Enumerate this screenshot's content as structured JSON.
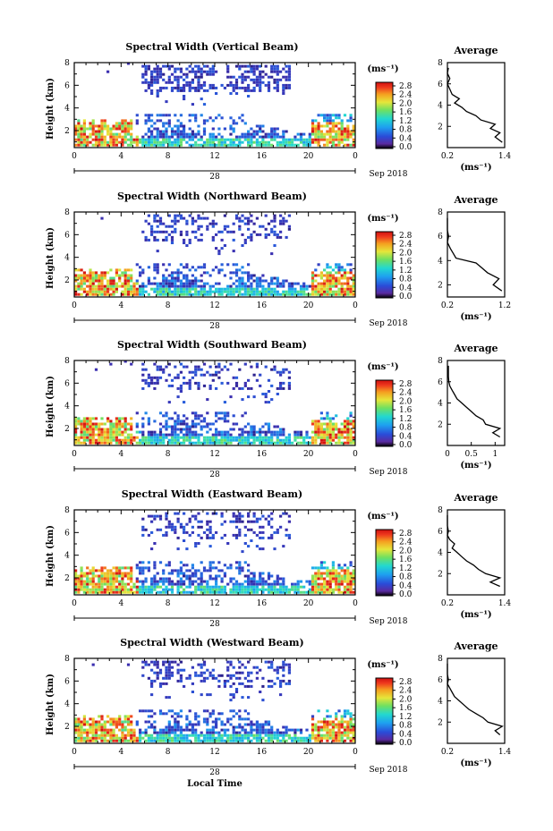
{
  "page": {
    "x_axis_label": "Local Time",
    "date_label": "Sep 2018",
    "day_label": "28",
    "units_label": "(ms⁻¹)",
    "avg_title": "Average",
    "avg_units": "(ms⁻¹)"
  },
  "chart_data": [
    {
      "type": "heatmap",
      "title": "Spectral Width (Vertical Beam)",
      "ylabel": "Height (km)",
      "xlabel": "",
      "xlim": [
        0,
        24
      ],
      "ylim": [
        0.5,
        8
      ],
      "x_ticks": [
        "0",
        "4",
        "8",
        "12",
        "16",
        "20",
        "0"
      ],
      "y_ticks": [
        "2",
        "4",
        "6",
        "8"
      ],
      "colorbar": {
        "ticks": [
          "0.0",
          "0.4",
          "0.8",
          "1.2",
          "1.6",
          "2.0",
          "2.4",
          "2.8"
        ],
        "range": [
          0,
          3.0
        ]
      },
      "average_profile": {
        "x_ticks": [
          "0.2",
          "1.4"
        ],
        "xlim": [
          0.2,
          1.4
        ],
        "ylim": [
          0,
          8
        ],
        "y_ticks": [
          "2",
          "4",
          "6",
          "8"
        ],
        "points": [
          [
            1.35,
            0.5
          ],
          [
            1.2,
            1.0
          ],
          [
            1.3,
            1.4
          ],
          [
            1.1,
            1.8
          ],
          [
            1.2,
            2.2
          ],
          [
            0.9,
            2.6
          ],
          [
            0.8,
            3.0
          ],
          [
            0.6,
            3.4
          ],
          [
            0.5,
            3.8
          ],
          [
            0.35,
            4.2
          ],
          [
            0.45,
            4.6
          ],
          [
            0.3,
            5.0
          ],
          [
            0.25,
            5.5
          ],
          [
            0.2,
            6.0
          ],
          [
            0.25,
            6.5
          ],
          [
            0.2,
            7.0
          ],
          [
            0.22,
            7.5
          ]
        ]
      }
    },
    {
      "type": "heatmap",
      "title": "Spectral Width (Northward Beam)",
      "ylabel": "Height (km)",
      "xlabel": "",
      "xlim": [
        0,
        24
      ],
      "ylim": [
        0.5,
        8
      ],
      "x_ticks": [
        "0",
        "4",
        "8",
        "12",
        "16",
        "20",
        "0"
      ],
      "y_ticks": [
        "2",
        "4",
        "6",
        "8"
      ],
      "colorbar": {
        "ticks": [
          "0.0",
          "0.4",
          "0.8",
          "1.2",
          "1.6",
          "2.0",
          "2.4",
          "2.8"
        ],
        "range": [
          0,
          3.0
        ]
      },
      "average_profile": {
        "x_ticks": [
          "0.2",
          "1.2"
        ],
        "xlim": [
          0.2,
          1.2
        ],
        "ylim": [
          1,
          8
        ],
        "y_ticks": [
          "2",
          "4",
          "6",
          "8"
        ],
        "points": [
          [
            1.15,
            1.5
          ],
          [
            1.0,
            2.0
          ],
          [
            1.1,
            2.5
          ],
          [
            0.9,
            3.0
          ],
          [
            0.8,
            3.4
          ],
          [
            0.7,
            3.8
          ],
          [
            0.35,
            4.2
          ],
          [
            0.3,
            4.6
          ],
          [
            0.25,
            5.0
          ],
          [
            0.2,
            5.5
          ],
          [
            0.22,
            6.0
          ],
          [
            0.2,
            6.5
          ],
          [
            0.2,
            7.0
          ],
          [
            0.2,
            7.5
          ]
        ]
      }
    },
    {
      "type": "heatmap",
      "title": "Spectral Width (Southward Beam)",
      "ylabel": "Height (km)",
      "xlabel": "",
      "xlim": [
        0,
        24
      ],
      "ylim": [
        0.5,
        8
      ],
      "x_ticks": [
        "0",
        "4",
        "8",
        "12",
        "16",
        "20",
        "0"
      ],
      "y_ticks": [
        "2",
        "4",
        "6",
        "8"
      ],
      "colorbar": {
        "ticks": [
          "0.0",
          "0.4",
          "0.8",
          "1.2",
          "1.6",
          "2.0",
          "2.4",
          "2.8"
        ],
        "range": [
          0,
          3.0
        ]
      },
      "average_profile": {
        "x_ticks": [
          "0",
          "0.5",
          "1"
        ],
        "xlim": [
          0,
          1.2
        ],
        "ylim": [
          0,
          8
        ],
        "y_ticks": [
          "2",
          "4",
          "6",
          "8"
        ],
        "points": [
          [
            1.1,
            0.8
          ],
          [
            0.95,
            1.2
          ],
          [
            1.1,
            1.6
          ],
          [
            0.8,
            2.0
          ],
          [
            0.75,
            2.4
          ],
          [
            0.6,
            2.8
          ],
          [
            0.5,
            3.2
          ],
          [
            0.4,
            3.6
          ],
          [
            0.3,
            4.0
          ],
          [
            0.2,
            4.4
          ],
          [
            0.15,
            4.8
          ],
          [
            0.1,
            5.2
          ],
          [
            0.05,
            5.6
          ],
          [
            0.03,
            6.0
          ],
          [
            0.02,
            6.5
          ],
          [
            0.02,
            7.0
          ],
          [
            0.02,
            7.5
          ]
        ]
      }
    },
    {
      "type": "heatmap",
      "title": "Spectral Width (Eastward Beam)",
      "ylabel": "Height (km)",
      "xlabel": "",
      "xlim": [
        0,
        24
      ],
      "ylim": [
        0.5,
        8
      ],
      "x_ticks": [
        "0",
        "4",
        "8",
        "12",
        "16",
        "20",
        "0"
      ],
      "y_ticks": [
        "2",
        "4",
        "6",
        "8"
      ],
      "colorbar": {
        "ticks": [
          "0.0",
          "0.4",
          "0.8",
          "1.2",
          "1.6",
          "2.0",
          "2.4",
          "2.8"
        ],
        "range": [
          0,
          3.0
        ]
      },
      "average_profile": {
        "x_ticks": [
          "0.2",
          "1.4"
        ],
        "xlim": [
          0.2,
          1.4
        ],
        "ylim": [
          0,
          8
        ],
        "y_ticks": [
          "2",
          "4",
          "6",
          "8"
        ],
        "points": [
          [
            1.3,
            0.8
          ],
          [
            1.1,
            1.2
          ],
          [
            1.3,
            1.6
          ],
          [
            1.0,
            2.0
          ],
          [
            0.85,
            2.4
          ],
          [
            0.75,
            2.8
          ],
          [
            0.6,
            3.2
          ],
          [
            0.5,
            3.6
          ],
          [
            0.4,
            4.0
          ],
          [
            0.3,
            4.4
          ],
          [
            0.35,
            4.8
          ],
          [
            0.25,
            5.2
          ],
          [
            0.2,
            5.6
          ],
          [
            0.22,
            6.0
          ],
          [
            0.2,
            6.5
          ],
          [
            0.2,
            7.0
          ],
          [
            0.2,
            7.5
          ]
        ]
      }
    },
    {
      "type": "heatmap",
      "title": "Spectral Width (Westward Beam)",
      "ylabel": "Height (km)",
      "xlabel": "",
      "xlim": [
        0,
        24
      ],
      "ylim": [
        0.5,
        8
      ],
      "x_ticks": [
        "0",
        "4",
        "8",
        "12",
        "16",
        "20",
        "0"
      ],
      "y_ticks": [
        "2",
        "4",
        "6",
        "8"
      ],
      "colorbar": {
        "ticks": [
          "0.0",
          "0.4",
          "0.8",
          "1.2",
          "1.6",
          "2.0",
          "2.4",
          "2.8"
        ],
        "range": [
          0,
          3.0
        ]
      },
      "average_profile": {
        "x_ticks": [
          "0.2",
          "1.4"
        ],
        "xlim": [
          0.2,
          1.4
        ],
        "ylim": [
          0,
          8
        ],
        "y_ticks": [
          "2",
          "4",
          "6",
          "8"
        ],
        "points": [
          [
            1.3,
            0.8
          ],
          [
            1.2,
            1.2
          ],
          [
            1.35,
            1.6
          ],
          [
            1.05,
            2.0
          ],
          [
            0.95,
            2.4
          ],
          [
            0.8,
            2.8
          ],
          [
            0.65,
            3.2
          ],
          [
            0.55,
            3.6
          ],
          [
            0.45,
            4.0
          ],
          [
            0.35,
            4.4
          ],
          [
            0.3,
            4.8
          ],
          [
            0.25,
            5.2
          ],
          [
            0.2,
            5.6
          ],
          [
            0.22,
            6.0
          ],
          [
            0.2,
            6.5
          ],
          [
            0.2,
            7.0
          ],
          [
            0.2,
            7.5
          ]
        ]
      }
    }
  ]
}
